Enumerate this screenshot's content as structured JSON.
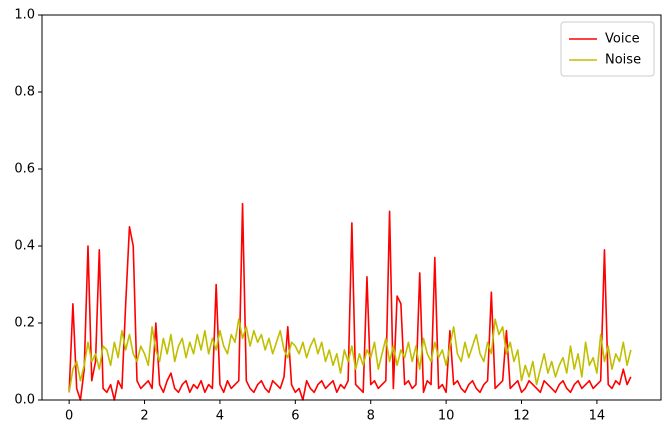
{
  "chart_data": {
    "type": "line",
    "x": [
      0,
      0.1,
      0.2,
      0.3,
      0.4,
      0.5,
      0.6,
      0.7,
      0.8,
      0.9,
      1,
      1.1,
      1.2,
      1.3,
      1.4,
      1.5,
      1.6,
      1.7,
      1.8,
      1.9,
      2,
      2.1,
      2.2,
      2.3,
      2.4,
      2.5,
      2.6,
      2.7,
      2.8,
      2.9,
      3,
      3.1,
      3.2,
      3.3,
      3.4,
      3.5,
      3.6,
      3.7,
      3.8,
      3.9,
      4,
      4.1,
      4.2,
      4.3,
      4.4,
      4.5,
      4.6,
      4.7,
      4.8,
      4.9,
      5,
      5.1,
      5.2,
      5.3,
      5.4,
      5.5,
      5.6,
      5.7,
      5.8,
      5.9,
      6,
      6.1,
      6.2,
      6.3,
      6.4,
      6.5,
      6.6,
      6.7,
      6.8,
      6.9,
      7,
      7.1,
      7.2,
      7.3,
      7.4,
      7.5,
      7.6,
      7.7,
      7.8,
      7.9,
      8,
      8.1,
      8.2,
      8.3,
      8.4,
      8.5,
      8.6,
      8.7,
      8.8,
      8.9,
      9,
      9.1,
      9.2,
      9.3,
      9.4,
      9.5,
      9.6,
      9.7,
      9.8,
      9.9,
      10,
      10.1,
      10.2,
      10.3,
      10.4,
      10.5,
      10.6,
      10.7,
      10.8,
      10.9,
      11,
      11.1,
      11.2,
      11.3,
      11.4,
      11.5,
      11.6,
      11.7,
      11.8,
      11.9,
      12,
      12.1,
      12.2,
      12.3,
      12.4,
      12.5,
      12.6,
      12.7,
      12.8,
      12.9,
      13,
      13.1,
      13.2,
      13.3,
      13.4,
      13.5,
      13.6,
      13.7,
      13.8,
      13.9,
      14,
      14.1,
      14.2,
      14.3,
      14.4,
      14.5,
      14.6,
      14.7,
      14.8,
      14.9
    ],
    "series": [
      {
        "name": "Voice",
        "color": "#ff0000",
        "values": [
          0.02,
          0.25,
          0.03,
          0.0,
          0.08,
          0.4,
          0.05,
          0.1,
          0.39,
          0.03,
          0.02,
          0.04,
          0.0,
          0.05,
          0.03,
          0.25,
          0.45,
          0.4,
          0.05,
          0.03,
          0.04,
          0.05,
          0.03,
          0.2,
          0.04,
          0.02,
          0.05,
          0.07,
          0.03,
          0.02,
          0.04,
          0.05,
          0.02,
          0.04,
          0.03,
          0.05,
          0.02,
          0.04,
          0.03,
          0.3,
          0.04,
          0.02,
          0.05,
          0.03,
          0.04,
          0.05,
          0.51,
          0.05,
          0.03,
          0.02,
          0.04,
          0.05,
          0.03,
          0.02,
          0.05,
          0.04,
          0.03,
          0.06,
          0.19,
          0.04,
          0.02,
          0.03,
          0.0,
          0.05,
          0.03,
          0.02,
          0.04,
          0.05,
          0.03,
          0.04,
          0.05,
          0.02,
          0.04,
          0.03,
          0.05,
          0.46,
          0.04,
          0.03,
          0.02,
          0.32,
          0.04,
          0.05,
          0.03,
          0.04,
          0.05,
          0.49,
          0.03,
          0.27,
          0.25,
          0.04,
          0.05,
          0.03,
          0.04,
          0.33,
          0.02,
          0.05,
          0.04,
          0.37,
          0.03,
          0.04,
          0.02,
          0.18,
          0.04,
          0.05,
          0.03,
          0.02,
          0.04,
          0.05,
          0.03,
          0.02,
          0.04,
          0.05,
          0.28,
          0.03,
          0.04,
          0.05,
          0.18,
          0.03,
          0.04,
          0.05,
          0.02,
          0.03,
          0.05,
          0.04,
          0.03,
          0.02,
          0.05,
          0.04,
          0.03,
          0.02,
          0.04,
          0.05,
          0.03,
          0.02,
          0.04,
          0.05,
          0.03,
          0.04,
          0.05,
          0.03,
          0.04,
          0.05,
          0.39,
          0.04,
          0.03,
          0.05,
          0.04,
          0.08,
          0.04,
          0.06
        ]
      },
      {
        "name": "Noise",
        "color": "#bfbf00",
        "values": [
          0.02,
          0.08,
          0.1,
          0.05,
          0.09,
          0.15,
          0.1,
          0.12,
          0.08,
          0.14,
          0.13,
          0.09,
          0.15,
          0.11,
          0.18,
          0.13,
          0.17,
          0.12,
          0.1,
          0.14,
          0.12,
          0.09,
          0.19,
          0.13,
          0.1,
          0.16,
          0.12,
          0.17,
          0.1,
          0.14,
          0.16,
          0.11,
          0.15,
          0.12,
          0.17,
          0.13,
          0.18,
          0.12,
          0.16,
          0.13,
          0.18,
          0.14,
          0.12,
          0.17,
          0.15,
          0.21,
          0.16,
          0.19,
          0.14,
          0.18,
          0.15,
          0.17,
          0.13,
          0.16,
          0.12,
          0.15,
          0.18,
          0.13,
          0.11,
          0.15,
          0.14,
          0.12,
          0.15,
          0.11,
          0.14,
          0.16,
          0.12,
          0.15,
          0.1,
          0.13,
          0.09,
          0.12,
          0.07,
          0.13,
          0.1,
          0.14,
          0.08,
          0.12,
          0.09,
          0.13,
          0.11,
          0.15,
          0.08,
          0.12,
          0.16,
          0.1,
          0.14,
          0.09,
          0.13,
          0.11,
          0.15,
          0.1,
          0.14,
          0.08,
          0.16,
          0.12,
          0.1,
          0.15,
          0.11,
          0.13,
          0.09,
          0.14,
          0.19,
          0.12,
          0.1,
          0.15,
          0.11,
          0.14,
          0.17,
          0.12,
          0.1,
          0.15,
          0.12,
          0.21,
          0.17,
          0.19,
          0.12,
          0.15,
          0.1,
          0.13,
          0.05,
          0.09,
          0.06,
          0.1,
          0.04,
          0.08,
          0.12,
          0.07,
          0.1,
          0.06,
          0.09,
          0.11,
          0.07,
          0.14,
          0.08,
          0.12,
          0.06,
          0.15,
          0.09,
          0.11,
          0.07,
          0.17,
          0.1,
          0.14,
          0.08,
          0.12,
          0.1,
          0.15,
          0.09,
          0.13
        ]
      }
    ],
    "xlim": [
      -0.72,
      15.7
    ],
    "xticks": [
      0,
      2,
      4,
      6,
      8,
      10,
      12,
      14
    ],
    "ylim": [
      0,
      1
    ],
    "yticks": [
      {
        "value": 0,
        "label": "0.0"
      },
      0.2,
      0.4,
      0.6,
      0.8,
      {
        "value": 1,
        "label": "1.0"
      }
    ],
    "legend": "upper right"
  }
}
